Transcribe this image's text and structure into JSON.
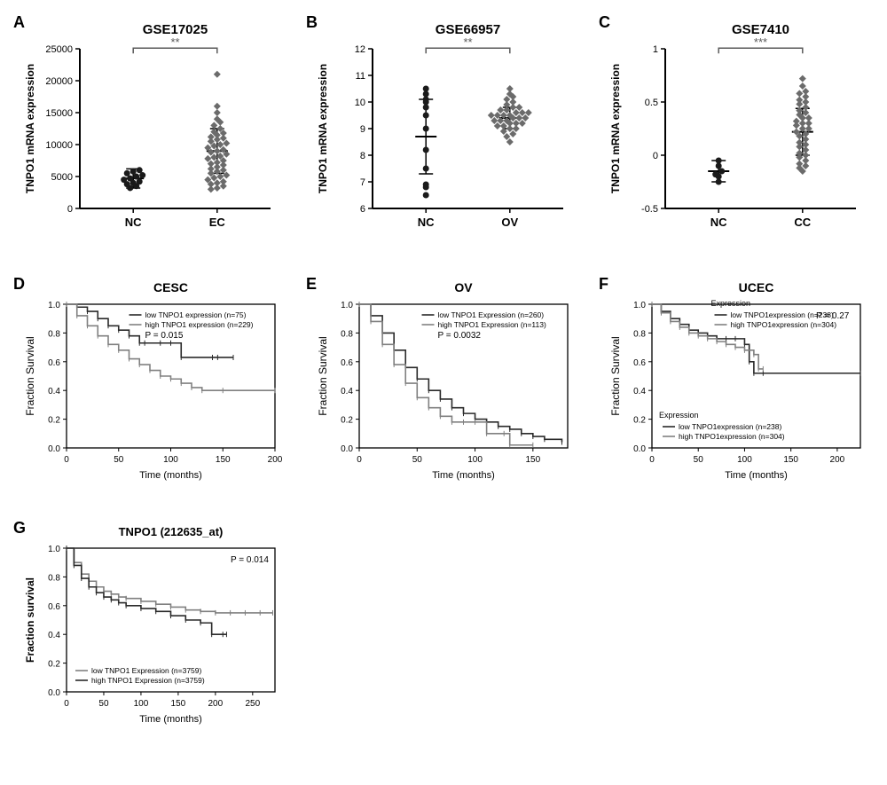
{
  "panels": {
    "A": {
      "label": "A",
      "title": "GSE17025",
      "ylabel": "TNPO1 mRNA expression",
      "xcats": [
        "NC",
        "EC"
      ],
      "ylim": [
        0,
        25000
      ],
      "yticks": [
        0,
        5000,
        10000,
        15000,
        20000,
        25000
      ],
      "sig": "**",
      "sig_color": "#5a5a5a",
      "nc": {
        "points": [
          3200,
          3500,
          3800,
          4000,
          4200,
          4500,
          4700,
          5000,
          5200,
          5500,
          5800,
          6000
        ],
        "mean": 4700,
        "sd": 1500,
        "color": "#1a1a1a",
        "shape": "circle"
      },
      "ec": {
        "points": [
          3000,
          3200,
          3500,
          3800,
          4000,
          4200,
          4500,
          4800,
          5000,
          5200,
          5500,
          5800,
          6000,
          6200,
          6500,
          6800,
          7000,
          7200,
          7500,
          7800,
          8000,
          8200,
          8500,
          8800,
          9000,
          9200,
          9500,
          9800,
          10000,
          10200,
          10500,
          10800,
          11000,
          11200,
          11500,
          11800,
          12000,
          12500,
          13000,
          13500,
          14000,
          15000,
          16000,
          21000
        ],
        "mean": 9000,
        "sd": 3500,
        "color": "#6b6b6b",
        "shape": "diamond"
      }
    },
    "B": {
      "label": "B",
      "title": "GSE66957",
      "ylabel": "TNPO1 mRNA expression",
      "xcats": [
        "NC",
        "OV"
      ],
      "ylim": [
        6,
        12
      ],
      "yticks": [
        6,
        7,
        8,
        9,
        10,
        11,
        12
      ],
      "sig": "**",
      "sig_color": "#5a5a5a",
      "nc": {
        "points": [
          6.5,
          6.8,
          6.9,
          7.5,
          8.2,
          9.0,
          9.5,
          9.8,
          10.0,
          10.1,
          10.3,
          10.5
        ],
        "mean": 8.7,
        "sd": 1.4,
        "color": "#1a1a1a",
        "shape": "circle"
      },
      "ov": {
        "points": [
          8.5,
          8.7,
          8.8,
          8.9,
          9.0,
          9.0,
          9.1,
          9.1,
          9.2,
          9.2,
          9.2,
          9.3,
          9.3,
          9.3,
          9.4,
          9.4,
          9.4,
          9.5,
          9.5,
          9.5,
          9.5,
          9.6,
          9.6,
          9.6,
          9.7,
          9.7,
          9.8,
          9.8,
          9.9,
          10.0,
          10.1,
          10.2,
          10.3,
          10.5
        ],
        "mean": 9.4,
        "sd": 0.4,
        "color": "#6b6b6b",
        "shape": "diamond"
      }
    },
    "C": {
      "label": "C",
      "title": "GSE7410",
      "ylabel": "TNPO1 mRNA expression",
      "xcats": [
        "NC",
        "CC"
      ],
      "ylim": [
        -0.5,
        1.0
      ],
      "yticks": [
        -0.5,
        0.0,
        0.5,
        1.0
      ],
      "sig": "***",
      "sig_color": "#5a5a5a",
      "nc": {
        "points": [
          -0.25,
          -0.2,
          -0.18,
          -0.15,
          -0.1,
          -0.05
        ],
        "mean": -0.15,
        "sd": 0.1,
        "color": "#1a1a1a",
        "shape": "circle"
      },
      "cc": {
        "points": [
          -0.15,
          -0.12,
          -0.1,
          -0.08,
          -0.05,
          -0.02,
          0.0,
          0.02,
          0.05,
          0.08,
          0.1,
          0.12,
          0.15,
          0.18,
          0.2,
          0.22,
          0.25,
          0.25,
          0.28,
          0.3,
          0.3,
          0.32,
          0.35,
          0.35,
          0.38,
          0.4,
          0.42,
          0.45,
          0.48,
          0.5,
          0.52,
          0.55,
          0.58,
          0.6,
          0.65,
          0.72
        ],
        "mean": 0.22,
        "sd": 0.22,
        "color": "#6b6b6b",
        "shape": "diamond"
      }
    },
    "D": {
      "label": "D",
      "title": "CESC",
      "ylabel": "Fraction Survival",
      "xlabel": "Time (months)",
      "ylim": [
        0,
        1.0
      ],
      "yticks": [
        0.0,
        0.2,
        0.4,
        0.6,
        0.8,
        1.0
      ],
      "xlim": [
        0,
        200
      ],
      "xticks": [
        0,
        50,
        100,
        150,
        200
      ],
      "legend": [
        "low TNPO1 expression (n=75)",
        "high TNPO1 expression (n=229)"
      ],
      "pvalue": "P = 0.015",
      "curve_low": {
        "color": "#2a2a2a",
        "data": [
          [
            0,
            1.0
          ],
          [
            10,
            0.98
          ],
          [
            20,
            0.95
          ],
          [
            30,
            0.9
          ],
          [
            40,
            0.85
          ],
          [
            50,
            0.82
          ],
          [
            60,
            0.78
          ],
          [
            70,
            0.73
          ],
          [
            75,
            0.73
          ],
          [
            90,
            0.73
          ],
          [
            100,
            0.73
          ],
          [
            110,
            0.63
          ],
          [
            140,
            0.63
          ],
          [
            145,
            0.63
          ],
          [
            160,
            0.63
          ]
        ]
      },
      "curve_high": {
        "color": "#808080",
        "data": [
          [
            0,
            1.0
          ],
          [
            10,
            0.92
          ],
          [
            20,
            0.85
          ],
          [
            30,
            0.78
          ],
          [
            40,
            0.72
          ],
          [
            50,
            0.68
          ],
          [
            60,
            0.62
          ],
          [
            70,
            0.58
          ],
          [
            80,
            0.54
          ],
          [
            90,
            0.5
          ],
          [
            100,
            0.48
          ],
          [
            110,
            0.45
          ],
          [
            120,
            0.42
          ],
          [
            130,
            0.4
          ],
          [
            150,
            0.4
          ],
          [
            200,
            0.4
          ]
        ]
      }
    },
    "E": {
      "label": "E",
      "title": "OV",
      "ylabel": "Fraction Survival",
      "xlabel": "Time (months)",
      "ylim": [
        0,
        1.0
      ],
      "yticks": [
        0.0,
        0.2,
        0.4,
        0.6,
        0.8,
        1.0
      ],
      "xlim": [
        0,
        180
      ],
      "xticks": [
        0,
        50,
        100,
        150
      ],
      "legend": [
        "low TNPO1 Expression (n=260)",
        "high TNPO1 Expression (n=113)"
      ],
      "pvalue": "P = 0.0032",
      "curve_low": {
        "color": "#2a2a2a",
        "data": [
          [
            0,
            1.0
          ],
          [
            10,
            0.92
          ],
          [
            20,
            0.8
          ],
          [
            30,
            0.68
          ],
          [
            40,
            0.56
          ],
          [
            50,
            0.48
          ],
          [
            60,
            0.4
          ],
          [
            70,
            0.34
          ],
          [
            80,
            0.28
          ],
          [
            90,
            0.24
          ],
          [
            100,
            0.2
          ],
          [
            110,
            0.18
          ],
          [
            120,
            0.15
          ],
          [
            130,
            0.13
          ],
          [
            140,
            0.1
          ],
          [
            150,
            0.08
          ],
          [
            160,
            0.06
          ],
          [
            175,
            0.04
          ]
        ]
      },
      "curve_high": {
        "color": "#808080",
        "data": [
          [
            0,
            1.0
          ],
          [
            10,
            0.88
          ],
          [
            20,
            0.72
          ],
          [
            30,
            0.58
          ],
          [
            40,
            0.45
          ],
          [
            50,
            0.35
          ],
          [
            60,
            0.28
          ],
          [
            70,
            0.22
          ],
          [
            80,
            0.18
          ],
          [
            90,
            0.18
          ],
          [
            100,
            0.18
          ],
          [
            110,
            0.1
          ],
          [
            125,
            0.1
          ],
          [
            130,
            0.02
          ],
          [
            150,
            0.02
          ]
        ]
      }
    },
    "F": {
      "label": "F",
      "title": "UCEC",
      "ylabel": "Fraction Survival",
      "xlabel": "Time (months)",
      "ylim": [
        0,
        1.0
      ],
      "yticks": [
        0.0,
        0.2,
        0.4,
        0.6,
        0.8,
        1.0
      ],
      "xlim": [
        0,
        225
      ],
      "xticks": [
        0,
        50,
        100,
        150,
        200
      ],
      "legend_title": "Expression",
      "legend": [
        "low TNPO1expression (n=238)",
        "high TNPO1expression (n=304)"
      ],
      "pvalue": "P = 0.27",
      "curve_low": {
        "color": "#2a2a2a",
        "data": [
          [
            0,
            1.0
          ],
          [
            10,
            0.95
          ],
          [
            20,
            0.9
          ],
          [
            30,
            0.86
          ],
          [
            40,
            0.82
          ],
          [
            50,
            0.8
          ],
          [
            60,
            0.78
          ],
          [
            70,
            0.76
          ],
          [
            80,
            0.76
          ],
          [
            90,
            0.76
          ],
          [
            100,
            0.72
          ],
          [
            105,
            0.6
          ],
          [
            110,
            0.52
          ],
          [
            120,
            0.52
          ],
          [
            225,
            0.52
          ]
        ]
      },
      "curve_high": {
        "color": "#808080",
        "data": [
          [
            0,
            1.0
          ],
          [
            10,
            0.94
          ],
          [
            20,
            0.88
          ],
          [
            30,
            0.84
          ],
          [
            40,
            0.8
          ],
          [
            50,
            0.78
          ],
          [
            60,
            0.76
          ],
          [
            70,
            0.74
          ],
          [
            80,
            0.72
          ],
          [
            90,
            0.7
          ],
          [
            100,
            0.68
          ],
          [
            110,
            0.65
          ],
          [
            115,
            0.55
          ],
          [
            120,
            0.55
          ]
        ]
      }
    },
    "G": {
      "label": "G",
      "title": "TNPO1 (212635_at)",
      "ylabel": "Fraction survival",
      "xlabel": "Time (months)",
      "ylim": [
        0,
        1.0
      ],
      "yticks": [
        0.0,
        0.2,
        0.4,
        0.6,
        0.8,
        1.0
      ],
      "xlim": [
        0,
        280
      ],
      "xticks": [
        0,
        50,
        100,
        150,
        200,
        250
      ],
      "legend": [
        "low TNPO1 Expression (n=3759)",
        "high TNPO1 Expression (n=3759)"
      ],
      "pvalue": "P = 0.014",
      "curve_low": {
        "color": "#808080",
        "data": [
          [
            0,
            1.0
          ],
          [
            10,
            0.9
          ],
          [
            20,
            0.82
          ],
          [
            30,
            0.77
          ],
          [
            40,
            0.73
          ],
          [
            50,
            0.7
          ],
          [
            60,
            0.68
          ],
          [
            70,
            0.66
          ],
          [
            80,
            0.65
          ],
          [
            100,
            0.63
          ],
          [
            120,
            0.61
          ],
          [
            140,
            0.59
          ],
          [
            160,
            0.57
          ],
          [
            180,
            0.56
          ],
          [
            200,
            0.55
          ],
          [
            220,
            0.55
          ],
          [
            240,
            0.55
          ],
          [
            260,
            0.55
          ],
          [
            277,
            0.55
          ]
        ]
      },
      "curve_high": {
        "color": "#2a2a2a",
        "data": [
          [
            0,
            1.0
          ],
          [
            10,
            0.88
          ],
          [
            20,
            0.79
          ],
          [
            30,
            0.73
          ],
          [
            40,
            0.69
          ],
          [
            50,
            0.66
          ],
          [
            60,
            0.64
          ],
          [
            70,
            0.62
          ],
          [
            80,
            0.6
          ],
          [
            100,
            0.58
          ],
          [
            120,
            0.56
          ],
          [
            140,
            0.53
          ],
          [
            160,
            0.5
          ],
          [
            180,
            0.48
          ],
          [
            195,
            0.4
          ],
          [
            210,
            0.4
          ],
          [
            215,
            0.4
          ]
        ]
      }
    }
  },
  "style": {
    "axis_color": "#000",
    "tick_fontsize": 11,
    "title_fontsize": 14,
    "label_fontsize": 12,
    "legend_fontsize": 9
  }
}
